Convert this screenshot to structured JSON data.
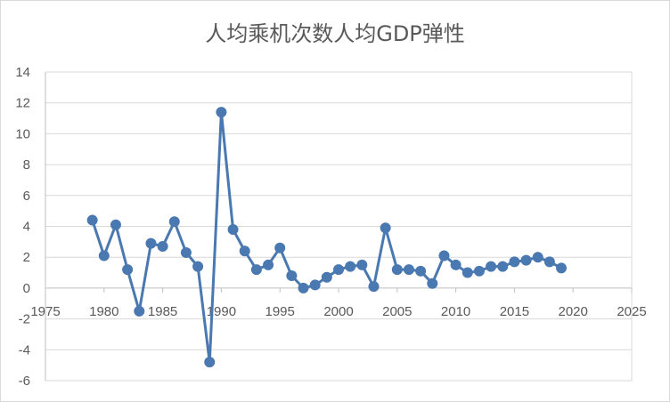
{
  "chart_data": {
    "type": "scatter",
    "title": "人均乘机次数人均GDP弹性",
    "xlabel": "",
    "ylabel": "",
    "xlim": [
      1975,
      2025
    ],
    "ylim": [
      -6,
      14
    ],
    "x_ticks": [
      1975,
      1980,
      1985,
      1990,
      1995,
      2000,
      2005,
      2010,
      2015,
      2020,
      2025
    ],
    "y_ticks": [
      -6,
      -4,
      -2,
      0,
      2,
      4,
      6,
      8,
      10,
      12,
      14
    ],
    "grid": "horizontal",
    "legend": "none",
    "series_color": "#4a78b0",
    "markers": true,
    "lines": true,
    "series": [
      {
        "x": [
          1979,
          1980,
          1981,
          1982,
          1983,
          1984,
          1985,
          1986,
          1987,
          1988,
          1989,
          1990,
          1991,
          1992,
          1993,
          1994,
          1995,
          1996,
          1997,
          1998,
          1999,
          2000,
          2001,
          2002,
          2003,
          2004,
          2005,
          2006,
          2007,
          2008,
          2009,
          2010,
          2011,
          2012,
          2013,
          2014,
          2015,
          2016,
          2017,
          2018,
          2019
        ],
        "y": [
          4.4,
          2.1,
          4.1,
          1.2,
          -1.5,
          2.9,
          2.7,
          4.3,
          2.3,
          1.4,
          -4.8,
          11.4,
          3.8,
          2.4,
          1.2,
          1.5,
          2.6,
          0.8,
          0.0,
          0.2,
          0.7,
          1.2,
          1.4,
          1.5,
          0.1,
          3.9,
          1.2,
          1.2,
          1.1,
          0.3,
          2.1,
          1.5,
          1.0,
          1.1,
          1.4,
          1.4,
          1.7,
          1.8,
          2.0,
          1.7,
          1.3
        ]
      }
    ]
  }
}
